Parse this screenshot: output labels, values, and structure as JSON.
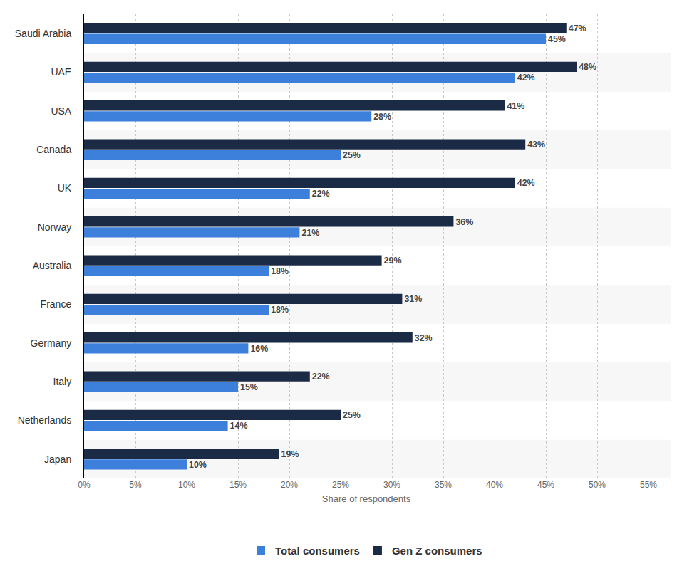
{
  "chart_data": {
    "type": "bar",
    "orientation": "horizontal",
    "x_label": "Share of respondents",
    "categories": [
      "Saudi Arabia",
      "UAE",
      "USA",
      "Canada",
      "UK",
      "Norway",
      "Australia",
      "France",
      "Germany",
      "Italy",
      "Netherlands",
      "Japan"
    ],
    "series": [
      {
        "name": "Gen Z consumers",
        "color": "#1b2a45",
        "values": [
          47,
          48,
          41,
          43,
          42,
          36,
          29,
          31,
          32,
          22,
          25,
          19
        ],
        "value_labels": [
          "47%",
          "48%",
          "41%",
          "43%",
          "42%",
          "36%",
          "29%",
          "31%",
          "32%",
          "22%",
          "25%",
          "19%"
        ]
      },
      {
        "name": "Total consumers",
        "color": "#3d80db",
        "values": [
          45,
          42,
          28,
          25,
          22,
          21,
          18,
          18,
          16,
          15,
          14,
          10
        ],
        "value_labels": [
          "45%",
          "42%",
          "28%",
          "25%",
          "22%",
          "21%",
          "18%",
          "18%",
          "16%",
          "15%",
          "14%",
          "10%"
        ]
      }
    ],
    "xlim": [
      0,
      55
    ],
    "xticks": [
      {
        "value": 0,
        "label": "0%"
      },
      {
        "value": 5,
        "label": "5%"
      },
      {
        "value": 10,
        "label": "10%"
      },
      {
        "value": 15,
        "label": "15%"
      },
      {
        "value": 20,
        "label": "20%"
      },
      {
        "value": 25,
        "label": "25%"
      },
      {
        "value": 30,
        "label": "30%"
      },
      {
        "value": 35,
        "label": "35%"
      },
      {
        "value": 40,
        "label": "40%"
      },
      {
        "value": 45,
        "label": "45%"
      },
      {
        "value": 50,
        "label": "50%"
      },
      {
        "value": 55,
        "label": "55%"
      }
    ],
    "grid": true,
    "data_labels": true,
    "legend": "bottom"
  }
}
